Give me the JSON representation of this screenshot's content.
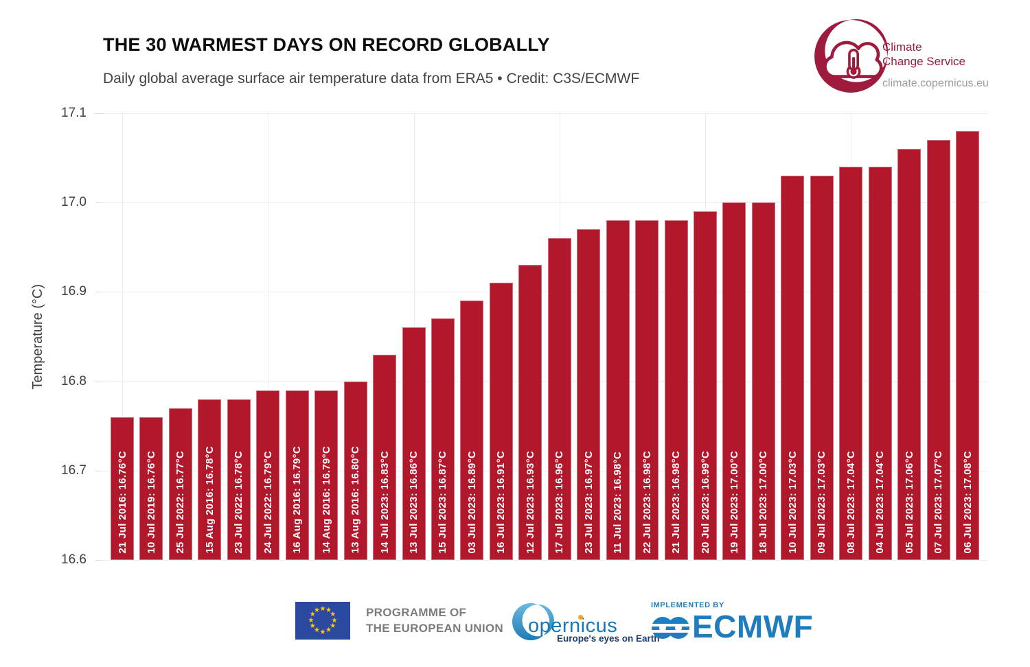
{
  "header": {
    "title": "THE 30 WARMEST DAYS ON RECORD GLOBALLY",
    "subtitle": "Daily global average surface air temperature data from ERA5 • Credit: C3S/ECMWF"
  },
  "c3s_logo": {
    "line1": "Climate",
    "line2": "Change Service",
    "url": "climate.copernicus.eu",
    "color": "#9e1b3e"
  },
  "chart_data": {
    "type": "bar",
    "title": "THE 30 WARMEST DAYS ON RECORD GLOBALLY",
    "subtitle": "Daily global average surface air temperature data from ERA5 • Credit: C3S/ECMWF",
    "xlabel": "",
    "ylabel": "Temperature (°C)",
    "ylim": [
      16.6,
      17.1
    ],
    "ytick_labels": [
      "17.1",
      "17.0",
      "16.9",
      "16.8",
      "16.7",
      "16.6"
    ],
    "grid": true,
    "legend": "none",
    "bar_color": "#b2182b",
    "categories": [
      "21 Jul 2016",
      "10 Jul 2019",
      "25 Jul 2022",
      "15 Aug 2016",
      "23 Jul 2022",
      "24 Jul 2022",
      "16 Aug 2016",
      "14 Aug 2016",
      "13 Aug 2016",
      "14 Jul 2023",
      "13 Jul 2023",
      "15 Jul 2023",
      "03 Jul 2023",
      "16 Jul 2023",
      "12 Jul 2023",
      "17 Jul 2023",
      "23 Jul 2023",
      "11 Jul 2023",
      "22 Jul 2023",
      "21 Jul 2023",
      "20 Jul 2023",
      "19 Jul 2023",
      "18 Jul 2023",
      "10 Jul 2023",
      "09 Jul 2023",
      "08 Jul 2023",
      "04 Jul 2023",
      "05 Jul 2023",
      "07 Jul 2023",
      "06 Jul 2023"
    ],
    "values": [
      16.76,
      16.76,
      16.77,
      16.78,
      16.78,
      16.79,
      16.79,
      16.79,
      16.8,
      16.83,
      16.86,
      16.87,
      16.89,
      16.91,
      16.93,
      16.96,
      16.97,
      16.98,
      16.98,
      16.98,
      16.99,
      17.0,
      17.0,
      17.03,
      17.03,
      17.04,
      17.04,
      17.06,
      17.07,
      17.08
    ],
    "bar_labels": [
      "21 Jul 2016: 16.76°C",
      "10 Jul 2019: 16.76°C",
      "25 Jul 2022: 16.77°C",
      "15 Aug 2016: 16.78°C",
      "23 Jul 2022: 16.78°C",
      "24 Jul 2022: 16.79°C",
      "16 Aug 2016: 16.79°C",
      "14 Aug 2016: 16.79°C",
      "13 Aug 2016: 16.80°C",
      "14 Jul 2023: 16.83°C",
      "13 Jul 2023: 16.86°C",
      "15 Jul 2023: 16.87°C",
      "03 Jul 2023: 16.89°C",
      "16 Jul 2023: 16.91°C",
      "12 Jul 2023: 16.93°C",
      "17 Jul 2023: 16.96°C",
      "23 Jul 2023: 16.97°C",
      "11 Jul 2023: 16.98°C",
      "22 Jul 2023: 16.98°C",
      "21 Jul 2023: 16.98°C",
      "20 Jul 2023: 16.99°C",
      "19 Jul 2023: 17.00°C",
      "18 Jul 2023: 17.00°C",
      "10 Jul 2023: 17.03°C",
      "09 Jul 2023: 17.03°C",
      "08 Jul 2023: 17.04°C",
      "04 Jul 2023: 17.04°C",
      "05 Jul 2023: 17.06°C",
      "07 Jul 2023: 17.07°C",
      "06 Jul 2023: 17.08°C"
    ]
  },
  "footer": {
    "eu": {
      "line1": "PROGRAMME OF",
      "line2": "THE EUROPEAN UNION"
    },
    "copernicus": {
      "word": "opernicus",
      "tagline": "Europe's eyes on Earth"
    },
    "ecmwf": {
      "implemented_by": "IMPLEMENTED BY",
      "name": "ECMWF",
      "color": "#1f7dbe"
    }
  }
}
